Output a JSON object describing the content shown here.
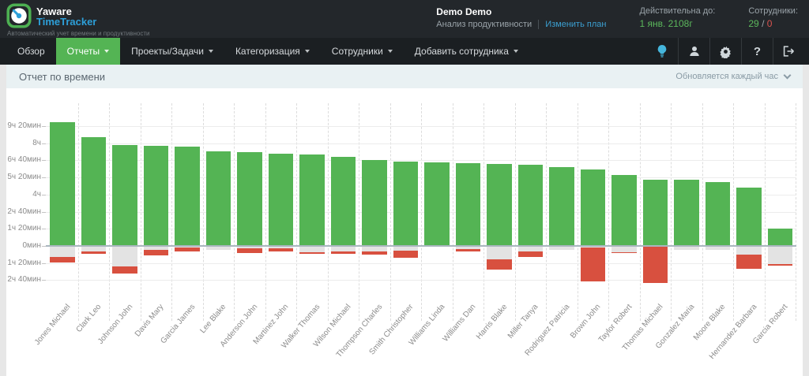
{
  "app": {
    "brand_line1": "Yaware",
    "brand_line2": "TimeTracker",
    "tagline": "Автоматический учет времени и продуктивности"
  },
  "account": {
    "name": "Demo Demo",
    "plan": "Анализ продуктивности",
    "change_plan_label": "Изменить план",
    "valid_label": "Действительна до:",
    "valid_until": "1 янв. 2108г",
    "employees_label": "Сотрудники:",
    "employees_active": "29",
    "employees_separator": "/",
    "employees_inactive": "0"
  },
  "nav": {
    "items": [
      {
        "label": "Обзор"
      },
      {
        "label": "Отчеты"
      },
      {
        "label": "Проекты/Задачи"
      },
      {
        "label": "Категоризация"
      },
      {
        "label": "Сотрудники"
      },
      {
        "label": "Добавить сотрудника"
      }
    ],
    "icon_names": [
      "idea-icon",
      "user-icon",
      "settings-icon",
      "help-icon",
      "logout-icon"
    ],
    "help_glyph": "?"
  },
  "report": {
    "title": "Отчет по времени",
    "update_note": "Обновляется каждый час"
  },
  "colors": {
    "productive": "#54b454",
    "neutral": "#e3e3e3",
    "unproductive": "#d8503f",
    "nav_active": "#54b454",
    "accent_blue": "#3b9fd1",
    "accent_green": "#5cb85c",
    "accent_red": "#d9534f"
  },
  "chart_data": {
    "type": "bar",
    "stacked": true,
    "unit": "minutes",
    "grid": true,
    "legend": "none",
    "ylim": [
      -205,
      640
    ],
    "baseline": 0,
    "categories": [
      "Jones Michael",
      "Clark Leo",
      "Johnson John",
      "Davis Mary",
      "Garcia James",
      "Lee Blake",
      "Anderson John",
      "Martinez John",
      "Walker Thomas",
      "Wilson Michael",
      "Thompson Charles",
      "Smith Christopher",
      "Williams Linda",
      "Williams Dan",
      "Harris Blake",
      "Miller Tanya",
      "Rodriguez Patricia",
      "Brown John",
      "Taylor Robert",
      "Thomas Michael",
      "Gonzalez Maria",
      "Moore Blake",
      "Hernandez Barbara",
      "Garcia Robert"
    ],
    "series": [
      {
        "name": "productive",
        "direction": "up",
        "color": "#54b454",
        "values": [
          578,
          508,
          470,
          468,
          463,
          443,
          438,
          432,
          427,
          415,
          402,
          395,
          390,
          388,
          385,
          380,
          368,
          359,
          331,
          310,
          310,
          300,
          273,
          82
        ]
      },
      {
        "name": "neutral",
        "direction": "down",
        "color": "#e3e3e3",
        "values": [
          50,
          26,
          95,
          17,
          9,
          17,
          10,
          12,
          30,
          25,
          26,
          22,
          5,
          15,
          61,
          25,
          17,
          8,
          28,
          0,
          18,
          20,
          40,
          86
        ]
      },
      {
        "name": "unproductive",
        "direction": "down",
        "color": "#d8503f",
        "values": [
          27,
          11,
          35,
          27,
          18,
          0,
          22,
          15,
          6,
          12,
          15,
          33,
          0,
          10,
          51,
          27,
          0,
          159,
          7,
          173,
          0,
          0,
          68,
          6
        ]
      }
    ],
    "y_ticks": [
      {
        "value": 560,
        "label": "9ч 20мин"
      },
      {
        "value": 480,
        "label": "8ч"
      },
      {
        "value": 400,
        "label": "6ч 40мин"
      },
      {
        "value": 320,
        "label": "5ч 20мин"
      },
      {
        "value": 240,
        "label": "4ч"
      },
      {
        "value": 160,
        "label": "2ч 40мин"
      },
      {
        "value": 80,
        "label": "1ч 20мин"
      },
      {
        "value": 0,
        "label": "0мин"
      },
      {
        "value": -80,
        "label": "1ч 20мин"
      },
      {
        "value": -160,
        "label": "2ч 40мин"
      }
    ]
  }
}
